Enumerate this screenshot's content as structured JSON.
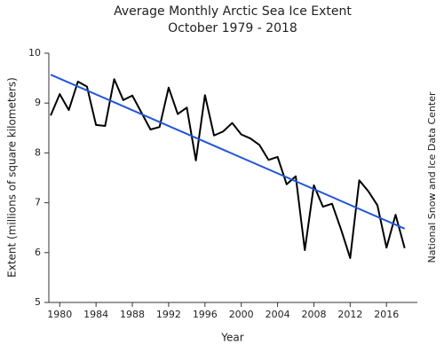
{
  "chart_data": {
    "type": "line",
    "title": "Average Monthly Arctic Sea Ice Extent",
    "subtitle": "October 1979 - 2018",
    "x_label": "Year",
    "y_label": "Extent (millions of square kilometers)",
    "source": "National Snow and Ice Data Center",
    "x": [
      1979,
      1980,
      1981,
      1982,
      1983,
      1984,
      1985,
      1986,
      1987,
      1988,
      1989,
      1990,
      1991,
      1992,
      1993,
      1994,
      1995,
      1996,
      1997,
      1998,
      1999,
      2000,
      2001,
      2002,
      2003,
      2004,
      2005,
      2006,
      2007,
      2008,
      2009,
      2010,
      2011,
      2012,
      2013,
      2014,
      2015,
      2016,
      2017,
      2018
    ],
    "values": [
      8.75,
      9.18,
      8.86,
      9.43,
      9.33,
      8.56,
      8.54,
      9.48,
      9.06,
      9.15,
      8.81,
      8.47,
      8.52,
      9.31,
      8.78,
      8.91,
      7.85,
      9.16,
      8.35,
      8.43,
      8.6,
      8.37,
      8.29,
      8.16,
      7.86,
      7.92,
      7.37,
      7.53,
      6.05,
      7.35,
      6.92,
      6.98,
      6.46,
      5.89,
      7.45,
      7.23,
      6.95,
      6.1,
      6.76,
      6.09
    ],
    "color": "#000000",
    "trend": {
      "x": [
        1979,
        2018
      ],
      "values": [
        9.57,
        6.48
      ],
      "color": "#2255d8"
    },
    "xlim": [
      1978.8,
      2019.4
    ],
    "ylim": [
      5,
      10
    ],
    "xticks": [
      1980,
      1984,
      1988,
      1992,
      1996,
      2000,
      2004,
      2008,
      2012,
      2016
    ],
    "yticks": [
      5,
      6,
      7,
      8,
      9,
      10
    ]
  }
}
